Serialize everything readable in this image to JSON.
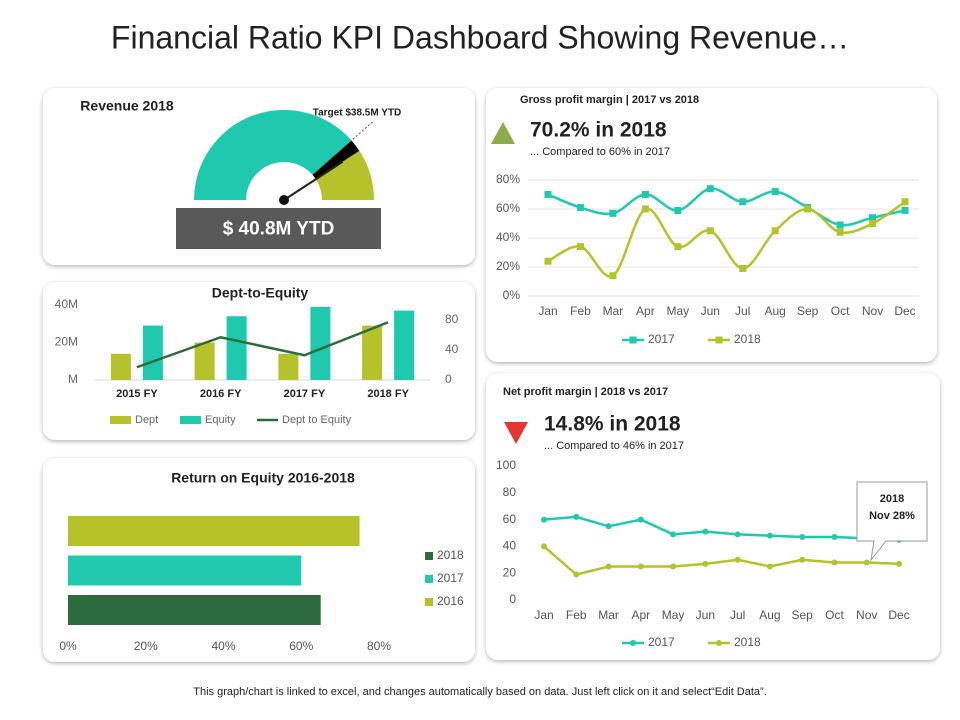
{
  "title": "Financial Ratio KPI Dashboard Showing Revenue…",
  "footer": "This graph/chart is linked to excel, and changes automatically based on data. Just left click on it and select“Edit Data”.",
  "chart_data": [
    {
      "type": "gauge",
      "title": "Revenue 2018",
      "values": [
        40.8
      ],
      "value_labels": [
        "$ 40.8M YTD"
      ],
      "target": 38.5,
      "target_label": "Target $38.5M YTD",
      "ylim": [
        0,
        50
      ],
      "colors": [
        "#1fc9ad",
        "#000000",
        "#b6c229"
      ]
    },
    {
      "type": "bar",
      "title": "Dept-to-Equity",
      "categories": [
        "2015 FY",
        "2016 FY",
        "2017 FY",
        "2018 FY"
      ],
      "series": [
        {
          "name": "Dept",
          "color": "#b6c229",
          "values": [
            14,
            20,
            14,
            29
          ]
        },
        {
          "name": "Equity",
          "color": "#1fc9ad",
          "values": [
            29,
            34,
            39,
            37
          ]
        },
        {
          "name": "Dept to Equity",
          "color": "#2d6a3c",
          "type": "line",
          "axis": "y2",
          "values": [
            17,
            57,
            33,
            77
          ]
        }
      ],
      "ylim": [
        0,
        40
      ],
      "yticks": [
        {
          "value": 0,
          "label": "M"
        },
        {
          "value": 20,
          "label": "20M"
        },
        {
          "value": 40,
          "label": "40M"
        }
      ],
      "y2lim": [
        0,
        100
      ],
      "y2ticks": [
        0,
        40,
        80
      ],
      "legend": "bottom"
    },
    {
      "type": "hbar",
      "title": "Return on Equity 2016-2018",
      "series": [
        {
          "name": "2018",
          "color": "#2d6a3c",
          "values": [
            65
          ]
        },
        {
          "name": "2017",
          "color": "#1fc9ad",
          "values": [
            60
          ]
        },
        {
          "name": "2016",
          "color": "#b6c229",
          "values": [
            75
          ]
        }
      ],
      "xlim": [
        0,
        80
      ],
      "xticks": [
        {
          "value": 0,
          "label": "0%"
        },
        {
          "value": 20,
          "label": "20%"
        },
        {
          "value": 40,
          "label": "40%"
        },
        {
          "value": 60,
          "label": "60%"
        },
        {
          "value": 80,
          "label": "80%"
        }
      ],
      "legend": "right"
    },
    {
      "type": "line",
      "title": "Gross profit margin | 2017 vs 2018",
      "headline": "70.2%  in 2018",
      "subtitle": "... Compared to 60% in 2017",
      "trend": "up",
      "trend_color": "#8faa4a",
      "smooth": true,
      "marker": "square",
      "categories": [
        "Jan",
        "Feb",
        "Mar",
        "Apr",
        "May",
        "Jun",
        "Jul",
        "Aug",
        "Sep",
        "Oct",
        "Nov",
        "Dec"
      ],
      "series": [
        {
          "name": "2017",
          "color": "#1fc9ad",
          "values": [
            70,
            61,
            57,
            70,
            59,
            74,
            65,
            72,
            61,
            49,
            54,
            59
          ]
        },
        {
          "name": "2018",
          "color": "#b6c229",
          "values": [
            24,
            34,
            14,
            60,
            34,
            45,
            19,
            45,
            60,
            44,
            50,
            65
          ]
        }
      ],
      "ylim": [
        0,
        80
      ],
      "yticks": [
        {
          "value": 0,
          "label": "0%"
        },
        {
          "value": 20,
          "label": "20%"
        },
        {
          "value": 40,
          "label": "40%"
        },
        {
          "value": 60,
          "label": "60%"
        },
        {
          "value": 80,
          "label": "80%"
        }
      ],
      "grid": true,
      "legend": "bottom"
    },
    {
      "type": "line",
      "title": "Net profit margin | 2018 vs 2017",
      "headline": "14.8%  in 2018",
      "subtitle": "... Compared to 46% in 2017",
      "trend": "down",
      "trend_color": "#e8342f",
      "smooth": false,
      "marker": "circle",
      "categories": [
        "Jan",
        "Feb",
        "Mar",
        "Apr",
        "May",
        "Jun",
        "Jul",
        "Aug",
        "Sep",
        "Oct",
        "Nov",
        "Dec"
      ],
      "series": [
        {
          "name": "2017",
          "color": "#1fc9ad",
          "values": [
            60,
            62,
            55,
            60,
            49,
            51,
            49,
            48,
            47,
            47,
            46,
            45
          ]
        },
        {
          "name": "2018",
          "color": "#b6c229",
          "values": [
            40,
            19,
            25,
            25,
            25,
            27,
            30,
            25,
            30,
            28,
            28,
            27
          ]
        }
      ],
      "ylim": [
        0,
        100
      ],
      "yticks": [
        0,
        20,
        40,
        60,
        80,
        100
      ],
      "grid": false,
      "annotation": [
        "2018",
        "Nov 28%"
      ],
      "legend": "bottom"
    }
  ]
}
